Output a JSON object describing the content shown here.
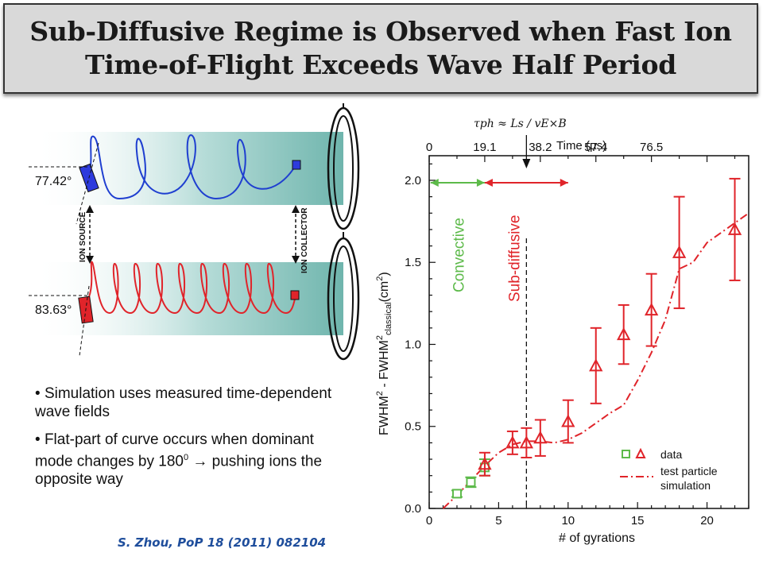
{
  "title": "Sub-Diffusive Regime is Observed when Fast Ion Time-of-Flight Exceeds Wave Half Period",
  "schematic": {
    "angle_top": "77.42°",
    "angle_bottom": "83.63°",
    "ion_source_label": "ION SOURCE",
    "ion_collector_label": "ION COLLECTOR"
  },
  "bullets": {
    "b1": "Simulation uses measured time-dependent wave fields",
    "b2_pre": "Flat-part of curve occurs when dominant mode changes by 180",
    "b2_sup": "0",
    "b2_arrow": "→",
    "b2_post": "pushing ions the opposite way"
  },
  "citation": "S. Zhou, PoP 18 (2011) 082104",
  "colors": {
    "accent_red": "#e0242a",
    "accent_green": "#5dba4a",
    "orbit_blue": "#1f3fd0",
    "citation_blue": "#1f4e9c"
  },
  "chart_data": {
    "type": "scatter",
    "xlabel": "# of gyrations",
    "ylabel": "FWHM² - FWHM²classical (cm²)",
    "ylabel_main": "FWHM",
    "ylabel_mid": " - FWHM",
    "ylabel_sub": "classical",
    "ylabel_unit": "(cm",
    "top_axis_label": "Time (µs)",
    "tau_label": "τph ≈ Ls / vE×B",
    "xlim": [
      0,
      23
    ],
    "ylim": [
      0,
      2.15
    ],
    "xticks": [
      0,
      5,
      10,
      15,
      20
    ],
    "yticks": [
      0.0,
      0.5,
      1.0,
      1.5,
      2.0
    ],
    "ytick_labels": [
      "0.0",
      "0.5",
      "1.0",
      "1.5",
      "2.0"
    ],
    "top_ticks": [
      {
        "gyr": 0,
        "label": "0"
      },
      {
        "gyr": 4,
        "label": "19.1"
      },
      {
        "gyr": 8,
        "label": "38.2"
      },
      {
        "gyr": 12,
        "label": "57.4"
      },
      {
        "gyr": 16,
        "label": "76.5"
      }
    ],
    "regimes": {
      "convective": {
        "label": "Convective",
        "from": 0.1,
        "to": 4
      },
      "subdiffusive": {
        "label": "Sub-diffusive",
        "from": 4,
        "to": 10
      },
      "boundary_x": 7
    },
    "series": [
      {
        "name": "data",
        "color": "#5dba4a",
        "marker": "square",
        "points": [
          {
            "x": 2,
            "y": 0.09,
            "err": 0.02
          },
          {
            "x": 3,
            "y": 0.16,
            "err": 0.03
          },
          {
            "x": 4,
            "y": 0.25,
            "err": 0.05
          }
        ]
      },
      {
        "name": "data",
        "color": "#e0242a",
        "marker": "triangle",
        "points": [
          {
            "x": 4,
            "y": 0.27,
            "err": 0.07
          },
          {
            "x": 6,
            "y": 0.4,
            "err": 0.07
          },
          {
            "x": 7,
            "y": 0.4,
            "err": 0.09
          },
          {
            "x": 8,
            "y": 0.43,
            "err": 0.11
          },
          {
            "x": 10,
            "y": 0.53,
            "err": 0.13
          },
          {
            "x": 12,
            "y": 0.87,
            "err": 0.23
          },
          {
            "x": 14,
            "y": 1.06,
            "err": 0.18
          },
          {
            "x": 16,
            "y": 1.21,
            "err": 0.22
          },
          {
            "x": 18,
            "y": 1.56,
            "err": 0.34
          },
          {
            "x": 22,
            "y": 1.7,
            "err": 0.31
          }
        ]
      },
      {
        "name": "test particle simulation",
        "color": "#e0242a",
        "style": "dash-dot",
        "points": [
          {
            "x": 1,
            "y": 0.0
          },
          {
            "x": 2,
            "y": 0.08
          },
          {
            "x": 3,
            "y": 0.17
          },
          {
            "x": 4,
            "y": 0.26
          },
          {
            "x": 5,
            "y": 0.34
          },
          {
            "x": 6,
            "y": 0.39
          },
          {
            "x": 7,
            "y": 0.41
          },
          {
            "x": 8,
            "y": 0.41
          },
          {
            "x": 9,
            "y": 0.4
          },
          {
            "x": 10,
            "y": 0.42
          },
          {
            "x": 11,
            "y": 0.46
          },
          {
            "x": 12,
            "y": 0.52
          },
          {
            "x": 13,
            "y": 0.58
          },
          {
            "x": 14,
            "y": 0.63
          },
          {
            "x": 15,
            "y": 0.78
          },
          {
            "x": 16,
            "y": 0.95
          },
          {
            "x": 17,
            "y": 1.15
          },
          {
            "x": 18,
            "y": 1.46
          },
          {
            "x": 19,
            "y": 1.5
          },
          {
            "x": 20,
            "y": 1.62
          },
          {
            "x": 21,
            "y": 1.68
          },
          {
            "x": 22,
            "y": 1.74
          },
          {
            "x": 23,
            "y": 1.8
          }
        ]
      }
    ],
    "legend": {
      "position": "bottom-right",
      "data_label": "data",
      "sim_label_1": "test particle",
      "sim_label_2": "simulation"
    }
  }
}
